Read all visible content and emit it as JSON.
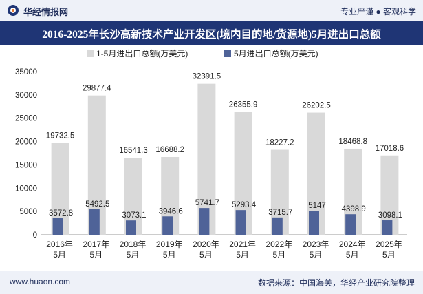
{
  "header": {
    "brand": "华经情报网",
    "tagline": "专业严谨 ● 客观科学"
  },
  "title": "2016-2025年长沙高新技术产业开发区(境内目的地/货源地)5月进出口总额",
  "footer": {
    "website": "www.huaon.com",
    "source": "数据来源：中国海关，华经产业研究院整理"
  },
  "colors": {
    "series1": "#d9d9d9",
    "series2": "#4f6398",
    "header_bg": "#1f3575",
    "band_bg": "#eef1f8"
  },
  "chart_data": {
    "type": "bar",
    "categories": [
      "2016年\n5月",
      "2017年\n5月",
      "2018年\n5月",
      "2019年\n5月",
      "2020年\n5月",
      "2021年\n5月",
      "2022年\n5月",
      "2023年\n5月",
      "2024年\n5月",
      "2025年\n5月"
    ],
    "series": [
      {
        "name": "1-5月进出口总额(万美元)",
        "values": [
          19732.5,
          29877.4,
          16541.3,
          16688.2,
          32391.5,
          26355.9,
          18227.2,
          26202.5,
          18468.8,
          17018.6
        ]
      },
      {
        "name": "5月进出口总额(万美元)",
        "values": [
          3572.8,
          5492.5,
          3073.1,
          3946.6,
          5741.7,
          5293.4,
          3715.7,
          5147,
          4398.9,
          3098.1
        ]
      }
    ],
    "ylim": [
      0,
      35000
    ],
    "yticks": [
      0,
      5000,
      10000,
      15000,
      20000,
      25000,
      30000,
      35000
    ],
    "legend": "top-left",
    "grid": false
  }
}
